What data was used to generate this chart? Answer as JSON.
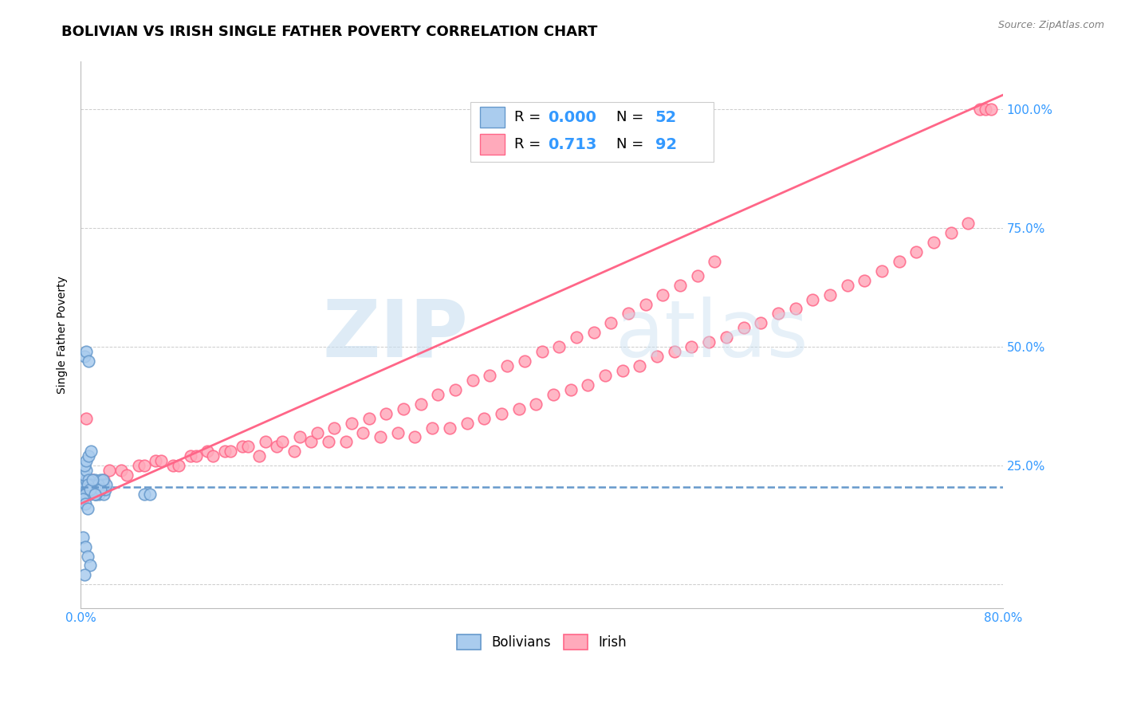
{
  "title": "BOLIVIAN VS IRISH SINGLE FATHER POVERTY CORRELATION CHART",
  "source": "Source: ZipAtlas.com",
  "ylabel": "Single Father Poverty",
  "right_yticks": [
    "100.0%",
    "75.0%",
    "50.0%",
    "25.0%"
  ],
  "right_ytick_vals": [
    1.0,
    0.75,
    0.5,
    0.25
  ],
  "legend_blue_R": "0.000",
  "legend_blue_N": "52",
  "legend_pink_R": "0.713",
  "legend_pink_N": "92",
  "blue_color": "#6699CC",
  "pink_color": "#FF6688",
  "blue_fill": "#AACCEE",
  "pink_fill": "#FFAABB",
  "blue_line_color": "#6699CC",
  "pink_line_color": "#FF6688",
  "background_color": "#FFFFFF",
  "grid_color": "#CCCCCC",
  "title_fontsize": 13,
  "axis_label_fontsize": 10,
  "tick_fontsize": 11,
  "blue_scatter_x": [
    0.002,
    0.003,
    0.004,
    0.005,
    0.006,
    0.007,
    0.008,
    0.009,
    0.01,
    0.011,
    0.012,
    0.013,
    0.014,
    0.015,
    0.016,
    0.017,
    0.018,
    0.019,
    0.02,
    0.021,
    0.022,
    0.003,
    0.005,
    0.007,
    0.009,
    0.011,
    0.013,
    0.015,
    0.017,
    0.019,
    0.004,
    0.006,
    0.008,
    0.01,
    0.012,
    0.003,
    0.005,
    0.007,
    0.009,
    0.002,
    0.004,
    0.006,
    0.055,
    0.06,
    0.003,
    0.005,
    0.007,
    0.002,
    0.004,
    0.006,
    0.008,
    0.003
  ],
  "blue_scatter_y": [
    0.2,
    0.21,
    0.19,
    0.22,
    0.2,
    0.21,
    0.19,
    0.2,
    0.21,
    0.2,
    0.22,
    0.19,
    0.21,
    0.2,
    0.19,
    0.22,
    0.2,
    0.21,
    0.19,
    0.2,
    0.21,
    0.23,
    0.24,
    0.22,
    0.21,
    0.2,
    0.19,
    0.21,
    0.2,
    0.22,
    0.19,
    0.21,
    0.2,
    0.22,
    0.19,
    0.25,
    0.26,
    0.27,
    0.28,
    0.18,
    0.17,
    0.16,
    0.19,
    0.19,
    0.48,
    0.49,
    0.47,
    0.1,
    0.08,
    0.06,
    0.04,
    0.02
  ],
  "pink_scatter_x": [
    0.005,
    0.02,
    0.035,
    0.05,
    0.065,
    0.08,
    0.095,
    0.11,
    0.125,
    0.14,
    0.155,
    0.17,
    0.185,
    0.2,
    0.215,
    0.23,
    0.245,
    0.26,
    0.275,
    0.29,
    0.305,
    0.32,
    0.335,
    0.35,
    0.365,
    0.38,
    0.395,
    0.41,
    0.425,
    0.44,
    0.455,
    0.47,
    0.485,
    0.5,
    0.515,
    0.53,
    0.545,
    0.56,
    0.575,
    0.59,
    0.605,
    0.62,
    0.635,
    0.65,
    0.665,
    0.68,
    0.695,
    0.71,
    0.725,
    0.74,
    0.755,
    0.77,
    0.01,
    0.025,
    0.04,
    0.055,
    0.07,
    0.085,
    0.1,
    0.115,
    0.13,
    0.145,
    0.16,
    0.175,
    0.19,
    0.205,
    0.22,
    0.235,
    0.25,
    0.265,
    0.28,
    0.295,
    0.31,
    0.325,
    0.34,
    0.355,
    0.37,
    0.385,
    0.4,
    0.415,
    0.43,
    0.445,
    0.46,
    0.475,
    0.49,
    0.505,
    0.52,
    0.535,
    0.55,
    0.78,
    0.785,
    0.79
  ],
  "pink_scatter_y": [
    0.35,
    0.22,
    0.24,
    0.25,
    0.26,
    0.25,
    0.27,
    0.28,
    0.28,
    0.29,
    0.27,
    0.29,
    0.28,
    0.3,
    0.3,
    0.3,
    0.32,
    0.31,
    0.32,
    0.31,
    0.33,
    0.33,
    0.34,
    0.35,
    0.36,
    0.37,
    0.38,
    0.4,
    0.41,
    0.42,
    0.44,
    0.45,
    0.46,
    0.48,
    0.49,
    0.5,
    0.51,
    0.52,
    0.54,
    0.55,
    0.57,
    0.58,
    0.6,
    0.61,
    0.63,
    0.64,
    0.66,
    0.68,
    0.7,
    0.72,
    0.74,
    0.76,
    0.22,
    0.24,
    0.23,
    0.25,
    0.26,
    0.25,
    0.27,
    0.27,
    0.28,
    0.29,
    0.3,
    0.3,
    0.31,
    0.32,
    0.33,
    0.34,
    0.35,
    0.36,
    0.37,
    0.38,
    0.4,
    0.41,
    0.43,
    0.44,
    0.46,
    0.47,
    0.49,
    0.5,
    0.52,
    0.53,
    0.55,
    0.57,
    0.59,
    0.61,
    0.63,
    0.65,
    0.68,
    1.0,
    1.0,
    1.0
  ],
  "blue_line_x": [
    0.0,
    0.8
  ],
  "blue_line_y": [
    0.205,
    0.205
  ],
  "pink_line_x": [
    0.0,
    0.8
  ],
  "pink_line_y": [
    0.17,
    1.03
  ],
  "xlim": [
    0.0,
    0.8
  ],
  "ylim": [
    -0.05,
    1.1
  ]
}
